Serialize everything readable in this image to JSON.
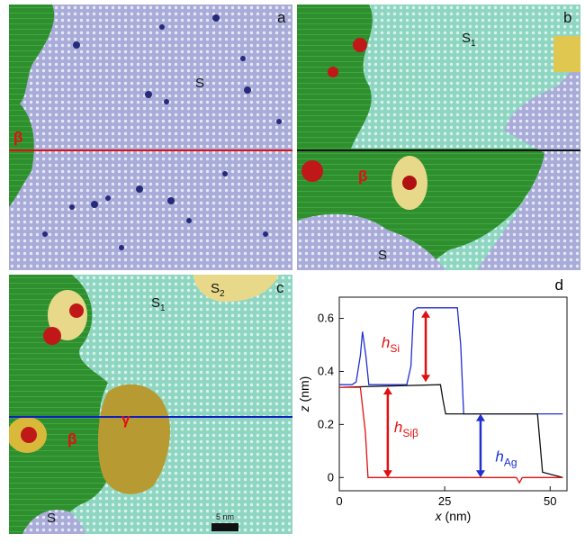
{
  "panels": {
    "a": {
      "letter": "a",
      "region_s": "S",
      "region_beta": "β",
      "line_color": "#e01010"
    },
    "b": {
      "letter": "b",
      "region_s1_main": "S",
      "region_s1_sub": "1",
      "region_beta": "β",
      "region_s": "S",
      "line_color": "#111111"
    },
    "c": {
      "letter": "c",
      "region_s1_main": "S",
      "region_s1_sub": "1",
      "region_s2_main": "S",
      "region_s2_sub": "2",
      "region_beta": "β",
      "region_gamma": "γ",
      "region_s": "S",
      "scalebar_label": "5 nm",
      "line_color": "#1020c0"
    }
  },
  "colors": {
    "silicene_s": "#a9acd8",
    "silicene_s1": "#8fd6c2",
    "ag_beta": "#2f8f2f",
    "gamma": "#b89a33",
    "label_red": "#e01010"
  },
  "chart_data": {
    "type": "line",
    "panel_letter": "d",
    "xlabel_var": "x",
    "xlabel_unit": "(nm)",
    "ylabel_var": "z",
    "ylabel_unit": "(nm)",
    "xlim": [
      0,
      54
    ],
    "ylim": [
      -0.05,
      0.68
    ],
    "xticks": [
      0,
      25,
      50
    ],
    "yticks": [
      0,
      0.2,
      0.4,
      0.6
    ],
    "ytick_labels": [
      "0",
      "0.2",
      "0.4",
      "0.6"
    ],
    "series": [
      {
        "color": "#2030d0",
        "x": [
          0,
          3,
          4,
          5,
          5.5,
          6.3,
          7,
          16,
          17,
          17.6,
          18.5,
          28,
          28.8,
          29.5,
          53
        ],
        "y": [
          0.35,
          0.35,
          0.36,
          0.46,
          0.55,
          0.46,
          0.35,
          0.35,
          0.42,
          0.63,
          0.64,
          0.64,
          0.5,
          0.24,
          0.24
        ]
      },
      {
        "color": "#111111",
        "x": [
          0,
          24,
          24.5,
          25.2,
          47,
          47.5,
          48.2,
          53
        ],
        "y": [
          0.34,
          0.35,
          0.3,
          0.24,
          0.24,
          0.15,
          0.02,
          0.0
        ]
      },
      {
        "color": "#e01010",
        "x": [
          0,
          5,
          6.2,
          6.8,
          42,
          42.7,
          43.4,
          53
        ],
        "y": [
          0.34,
          0.34,
          0.17,
          0.0,
          0.0,
          -0.02,
          0.0,
          0.0
        ]
      }
    ],
    "annotations": [
      {
        "main": "h",
        "sub": "Si",
        "color": "#e01010",
        "x": 20.5,
        "y1": 0.36,
        "y2": 0.63,
        "tx": 10,
        "ty": 0.49
      },
      {
        "main": "h",
        "sub": "Siβ",
        "color": "#e01010",
        "x": 11.5,
        "y1": 0.0,
        "y2": 0.34,
        "tx": 13,
        "ty": 0.17
      },
      {
        "main": "h",
        "sub": "Ag",
        "color": "#2030d0",
        "x": 33.5,
        "y1": 0.0,
        "y2": 0.24,
        "tx": 37,
        "ty": 0.06
      }
    ]
  }
}
